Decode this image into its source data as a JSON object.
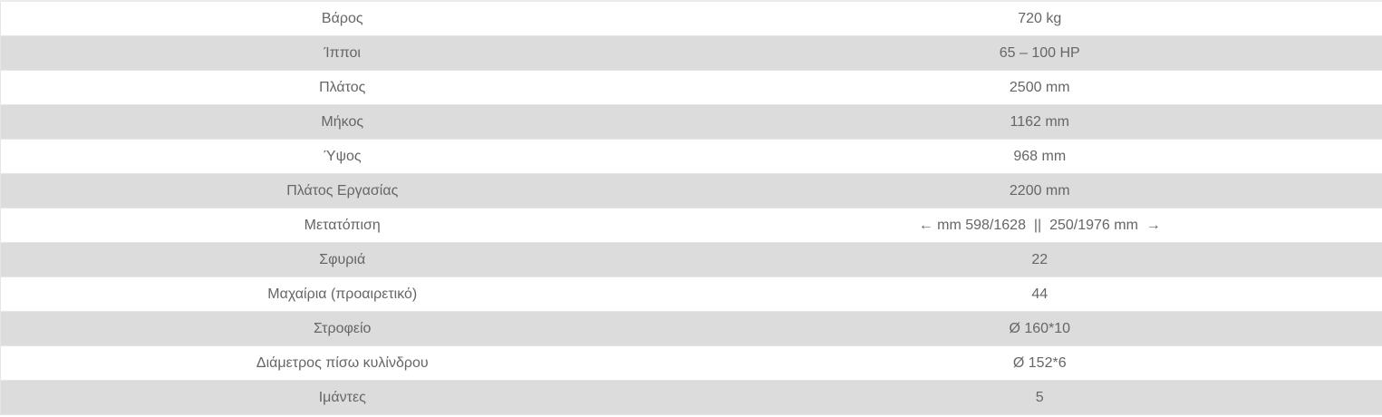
{
  "specs": [
    {
      "label": "Βάρος",
      "value": "720 kg"
    },
    {
      "label": "Ίπποι",
      "value": "65 – 100 HP"
    },
    {
      "label": "Πλάτος",
      "value": "2500 mm"
    },
    {
      "label": "Μήκος",
      "value": "1162 mm"
    },
    {
      "label": "Ύψος",
      "value": "968 mm"
    },
    {
      "label": "Πλάτος Εργασίας",
      "value": "2200 mm"
    },
    {
      "label": "Μετατόπιση",
      "value": "← mm 598/1628  ||  250/1976 mm  →"
    },
    {
      "label": "Σφυριά",
      "value": "22"
    },
    {
      "label": "Μαχαίρια (προαιρετικό)",
      "value": "44"
    },
    {
      "label": "Στροφείο",
      "value": "Ø 160*10"
    },
    {
      "label": "Διάμετρος πίσω κυλίνδρου",
      "value": "Ø 152*6"
    },
    {
      "label": "Ιμάντες",
      "value": "5"
    }
  ]
}
